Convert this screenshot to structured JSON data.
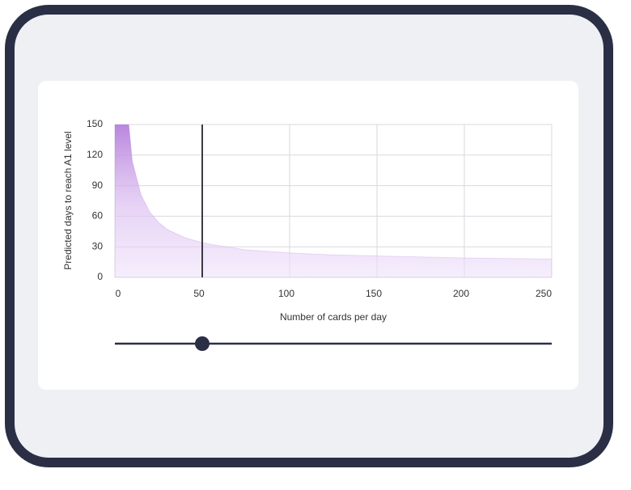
{
  "chart_data": {
    "type": "area",
    "x_label": "Number of cards per day",
    "y_label": "Predicted days to reach A1 level",
    "x": [
      0,
      8,
      10,
      15,
      20,
      25,
      30,
      40,
      50,
      60,
      75,
      100,
      125,
      150,
      175,
      200,
      225,
      250
    ],
    "values": [
      150,
      150,
      114,
      81,
      64,
      54,
      47,
      39,
      34,
      31,
      27,
      24,
      22,
      21,
      20,
      19,
      18.5,
      18
    ],
    "color": "#b57fdc",
    "marker_x": 50,
    "xlim": [
      0,
      250
    ],
    "xticks": [
      0,
      50,
      100,
      150,
      200,
      250
    ],
    "ylim": [
      0,
      150
    ],
    "yticks": [
      0,
      30,
      60,
      90,
      120,
      150
    ],
    "grid": true
  }
}
